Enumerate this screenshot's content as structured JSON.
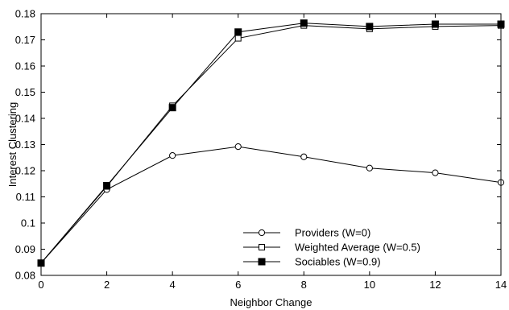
{
  "chart_data": {
    "type": "line",
    "xlabel": "Neighbor Change",
    "ylabel": "Interest Clustering",
    "xlim": [
      0,
      14
    ],
    "ylim": [
      0.08,
      0.18
    ],
    "x_ticks": [
      "0",
      "2",
      "4",
      "6",
      "8",
      "10",
      "12",
      "14"
    ],
    "y_ticks": [
      "0.08",
      "0.09",
      "0.1",
      "0.11",
      "0.12",
      "0.13",
      "0.14",
      "0.15",
      "0.16",
      "0.17",
      "0.18"
    ],
    "grid": false,
    "legend_position": "bottom-right",
    "x": [
      0,
      2,
      4,
      6,
      8,
      10,
      12,
      14
    ],
    "series": [
      {
        "name": "Providers (W=0)",
        "marker": "circle-open",
        "values": [
          0.0847,
          0.1128,
          0.1258,
          0.1292,
          0.1253,
          0.121,
          0.1192,
          0.1155
        ]
      },
      {
        "name": "Weighted Average (W=0.5)",
        "marker": "square-open",
        "values": [
          0.0847,
          0.114,
          0.1448,
          0.1706,
          0.1755,
          0.1742,
          0.1751,
          0.1755
        ]
      },
      {
        "name": "Sociables (W=0.9)",
        "marker": "square-filled",
        "values": [
          0.0847,
          0.1143,
          0.1441,
          0.173,
          0.1764,
          0.1751,
          0.176,
          0.176
        ]
      }
    ]
  }
}
